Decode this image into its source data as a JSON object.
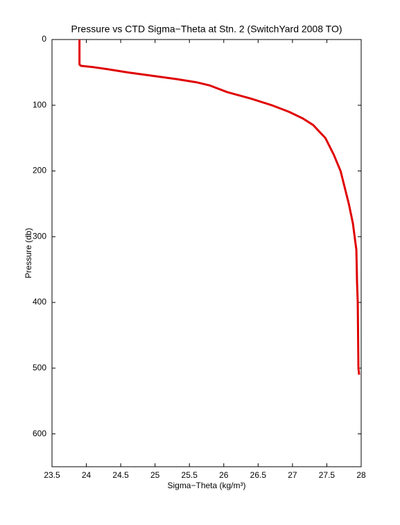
{
  "chart_data": {
    "type": "line",
    "title": "Pressure vs CTD Sigma−Theta at Stn. 2 (SwitchYard 2008 TO)",
    "x_label": "Sigma−Theta (kg/m³)",
    "y_label": "Pressure (db)",
    "x": [
      23.9,
      23.9,
      23.92,
      24.1,
      24.3,
      24.6,
      24.95,
      25.3,
      25.6,
      25.8,
      26.05,
      26.4,
      26.7,
      26.95,
      27.15,
      27.3,
      27.48,
      27.6,
      27.7,
      27.82,
      27.88,
      27.93,
      27.94,
      27.95,
      27.955,
      27.96,
      27.97
    ],
    "series": [
      {
        "name": "Pressure",
        "color": "#e00000",
        "values": [
          0,
          38,
          40,
          42,
          45,
          50,
          55,
          60,
          65,
          70,
          80,
          90,
          100,
          110,
          120,
          130,
          150,
          175,
          200,
          250,
          280,
          320,
          370,
          400,
          450,
          500,
          510
        ]
      }
    ],
    "xlim": [
      23.5,
      28
    ],
    "ylim": [
      0,
      650
    ],
    "y_reversed": true,
    "xticks": [
      23.5,
      24,
      24.5,
      25,
      25.5,
      26,
      26.5,
      27,
      27.5,
      28
    ],
    "yticks": [
      0,
      100,
      200,
      300,
      400,
      500,
      600
    ],
    "grid": false
  }
}
